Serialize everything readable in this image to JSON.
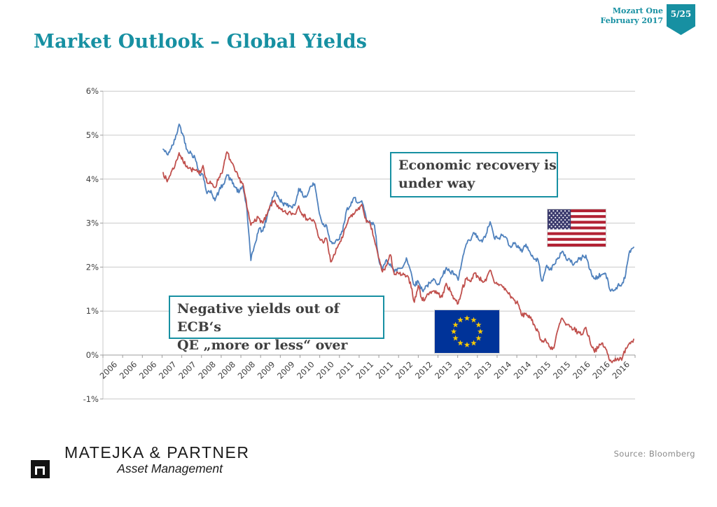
{
  "header": {
    "product": "Mozart One",
    "date": "February 2017",
    "page_badge": "5/25"
  },
  "title": "Market Outlook – Global Yields",
  "callouts": {
    "recovery": {
      "line1": "Economic recovery is",
      "line2": "under way"
    },
    "ecb": {
      "line1": "Negative yields out of ECB‘s",
      "line2": "QE „more or less“ over"
    }
  },
  "footer": {
    "company": "MATEJKA & PARTNER",
    "division": "Asset Management",
    "source": "Source: Bloomberg"
  },
  "colors": {
    "accent_teal": "#1790A2",
    "us_line": "#4F81BD",
    "eu_line": "#C0504D",
    "grid": "#C9C9C9",
    "axis": "#9C9C9C",
    "tick_text": "#3F3F3F"
  },
  "flags": {
    "us": {
      "label": "united-states-flag",
      "red": "#B22234",
      "blue": "#3C3B6E",
      "white": "#FFFFFF"
    },
    "eu": {
      "label": "european-union-flag",
      "blue": "#003399",
      "star": "#FFCC00"
    }
  },
  "chart_data": {
    "type": "line",
    "title": "",
    "xlabel": "",
    "ylabel": "",
    "grid": "horizontal",
    "legend_position": "none",
    "ylim": [
      -1,
      6
    ],
    "y_tick_labels": [
      "6%",
      "5%",
      "4%",
      "3%",
      "2%",
      "1%",
      "0%",
      "-1%"
    ],
    "y_tick_values": [
      6,
      5,
      4,
      3,
      2,
      1,
      0,
      -1
    ],
    "x_tick_labels": [
      "2006",
      "2006",
      "2006",
      "2007",
      "2007",
      "2008",
      "2008",
      "2008",
      "2009",
      "2009",
      "2010",
      "2010",
      "2011",
      "2011",
      "2011",
      "2012",
      "2012",
      "2013",
      "2013",
      "2013",
      "2014",
      "2014",
      "2015",
      "2015",
      "2016",
      "2016",
      "2016"
    ],
    "x_start": "2007-02",
    "x_end": "2016-12",
    "x_frequency": "monthly",
    "series": [
      {
        "name": "United States 10Y yield",
        "flag": "US",
        "color": "#4F81BD",
        "values": [
          4.68,
          4.56,
          4.69,
          4.9,
          5.25,
          5.0,
          4.67,
          4.59,
          4.48,
          4.15,
          4.1,
          3.67,
          3.74,
          3.51,
          3.73,
          3.88,
          4.1,
          3.98,
          3.83,
          3.69,
          3.85,
          3.32,
          2.15,
          2.52,
          2.87,
          2.82,
          3.12,
          3.46,
          3.72,
          3.56,
          3.46,
          3.4,
          3.39,
          3.4,
          3.79,
          3.63,
          3.61,
          3.84,
          3.89,
          3.31,
          2.97,
          2.94,
          2.58,
          2.54,
          2.63,
          2.81,
          3.3,
          3.39,
          3.58,
          3.47,
          3.45,
          3.06,
          3.0,
          2.95,
          2.22,
          1.92,
          2.17,
          2.07,
          1.89,
          1.97,
          1.98,
          2.21,
          1.93,
          1.59,
          1.67,
          1.47,
          1.57,
          1.63,
          1.72,
          1.62,
          1.78,
          1.99,
          1.88,
          1.85,
          1.7,
          2.16,
          2.52,
          2.6,
          2.78,
          2.64,
          2.57,
          2.75,
          3.03,
          2.67,
          2.65,
          2.72,
          2.67,
          2.48,
          2.53,
          2.49,
          2.34,
          2.52,
          2.34,
          2.18,
          2.17,
          1.68,
          2.0,
          1.94,
          2.05,
          2.21,
          2.35,
          2.2,
          2.17,
          2.06,
          2.16,
          2.21,
          2.27,
          1.94,
          1.74,
          1.78,
          1.83,
          1.85,
          1.49,
          1.46,
          1.58,
          1.6,
          1.84,
          2.37,
          2.45
        ]
      },
      {
        "name": "Eurozone 10Y yield",
        "flag": "EU",
        "color": "#C0504D",
        "values": [
          4.15,
          3.94,
          4.16,
          4.32,
          4.6,
          4.4,
          4.3,
          4.22,
          4.2,
          4.12,
          4.31,
          3.92,
          3.9,
          3.81,
          4.04,
          4.22,
          4.62,
          4.4,
          4.19,
          4.02,
          3.9,
          3.37,
          2.95,
          3.09,
          3.11,
          3.0,
          3.17,
          3.41,
          3.52,
          3.33,
          3.26,
          3.22,
          3.23,
          3.2,
          3.39,
          3.2,
          3.1,
          3.09,
          3.02,
          2.67,
          2.58,
          2.64,
          2.12,
          2.28,
          2.52,
          2.67,
          2.96,
          3.16,
          3.22,
          3.35,
          3.38,
          3.02,
          2.96,
          2.61,
          2.22,
          1.89,
          2.03,
          2.28,
          1.83,
          1.85,
          1.82,
          1.79,
          1.66,
          1.2,
          1.58,
          1.24,
          1.33,
          1.44,
          1.46,
          1.39,
          1.32,
          1.63,
          1.45,
          1.29,
          1.17,
          1.51,
          1.73,
          1.67,
          1.86,
          1.78,
          1.69,
          1.69,
          1.93,
          1.66,
          1.62,
          1.57,
          1.47,
          1.36,
          1.25,
          1.16,
          0.89,
          0.95,
          0.84,
          0.7,
          0.54,
          0.3,
          0.33,
          0.18,
          0.16,
          0.58,
          0.84,
          0.68,
          0.64,
          0.59,
          0.52,
          0.47,
          0.63,
          0.33,
          0.11,
          0.15,
          0.27,
          0.14,
          -0.13,
          -0.12,
          -0.07,
          -0.12,
          0.16,
          0.28,
          0.36
        ]
      }
    ]
  }
}
